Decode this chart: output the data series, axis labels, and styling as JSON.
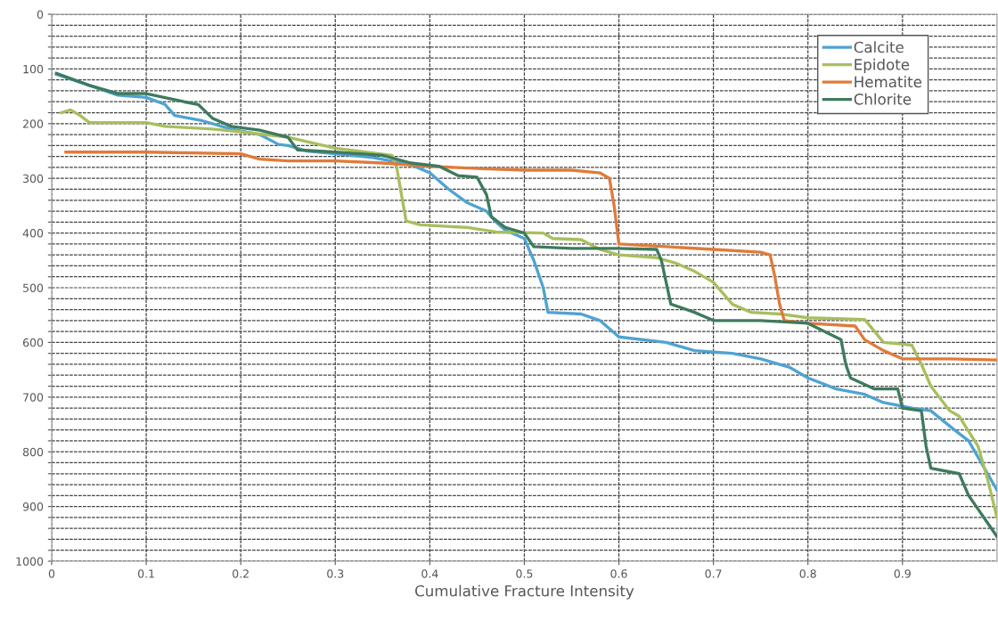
{
  "chart_data": {
    "type": "line",
    "xlabel": "Cumulative Fracture Intensity",
    "xlim": [
      0,
      1
    ],
    "xticks": [
      0,
      0.1,
      0.2,
      0.3,
      0.4,
      0.5,
      0.6,
      0.7,
      0.8,
      0.9
    ],
    "ylim": [
      1000,
      0
    ],
    "yticks": [
      0,
      {
        "value": 20,
        "label": null
      },
      {
        "value": 40,
        "label": null
      },
      {
        "value": 60,
        "label": null
      },
      {
        "value": 80,
        "label": null
      },
      100,
      {
        "value": 120,
        "label": null
      },
      {
        "value": 140,
        "label": null
      },
      {
        "value": 160,
        "label": null
      },
      {
        "value": 180,
        "label": null
      },
      200,
      {
        "value": 220,
        "label": null
      },
      {
        "value": 240,
        "label": null
      },
      {
        "value": 260,
        "label": null
      },
      {
        "value": 280,
        "label": null
      },
      300,
      {
        "value": 320,
        "label": null
      },
      {
        "value": 340,
        "label": null
      },
      {
        "value": 360,
        "label": null
      },
      {
        "value": 380,
        "label": null
      },
      400,
      {
        "value": 420,
        "label": null
      },
      {
        "value": 440,
        "label": null
      },
      {
        "value": 460,
        "label": null
      },
      {
        "value": 480,
        "label": null
      },
      500,
      {
        "value": 520,
        "label": null
      },
      {
        "value": 540,
        "label": null
      },
      {
        "value": 560,
        "label": null
      },
      {
        "value": 580,
        "label": null
      },
      600,
      {
        "value": 620,
        "label": null
      },
      {
        "value": 640,
        "label": null
      },
      {
        "value": 660,
        "label": null
      },
      {
        "value": 680,
        "label": null
      },
      700,
      {
        "value": 720,
        "label": null
      },
      {
        "value": 740,
        "label": null
      },
      {
        "value": 760,
        "label": null
      },
      {
        "value": 780,
        "label": null
      },
      800,
      {
        "value": 820,
        "label": null
      },
      {
        "value": 840,
        "label": null
      },
      {
        "value": 860,
        "label": null
      },
      {
        "value": 880,
        "label": null
      },
      900,
      {
        "value": 920,
        "label": null
      },
      {
        "value": 940,
        "label": null
      },
      {
        "value": 960,
        "label": null
      },
      {
        "value": 980,
        "label": null
      },
      1000
    ],
    "grid": true,
    "legend": "top right",
    "marker": "none",
    "line_style": "solid",
    "series": [
      {
        "name": "Calcite",
        "color": "#4fa3d1",
        "x": [
          0.005,
          0.04,
          0.07,
          0.1,
          0.12,
          0.13,
          0.16,
          0.19,
          0.22,
          0.24,
          0.25,
          0.27,
          0.3,
          0.34,
          0.38,
          0.4,
          0.42,
          0.44,
          0.46,
          0.47,
          0.48,
          0.5,
          0.51,
          0.52,
          0.525,
          0.56,
          0.58,
          0.6,
          0.65,
          0.68,
          0.72,
          0.75,
          0.78,
          0.8,
          0.83,
          0.86,
          0.88,
          0.91,
          0.93,
          0.955,
          0.97,
          0.99,
          1.0
        ],
        "values": [
          110,
          130,
          148,
          152,
          165,
          185,
          195,
          210,
          220,
          238,
          240,
          250,
          255,
          262,
          275,
          290,
          320,
          345,
          360,
          380,
          395,
          410,
          450,
          500,
          545,
          548,
          560,
          590,
          600,
          615,
          620,
          630,
          645,
          665,
          685,
          695,
          710,
          720,
          725,
          760,
          780,
          840,
          870
        ]
      },
      {
        "name": "Epidote",
        "color": "#a8bf5e",
        "x": [
          0.01,
          0.02,
          0.03,
          0.04,
          0.07,
          0.1,
          0.12,
          0.17,
          0.2,
          0.25,
          0.3,
          0.36,
          0.365,
          0.37,
          0.375,
          0.39,
          0.44,
          0.47,
          0.52,
          0.53,
          0.56,
          0.58,
          0.6,
          0.64,
          0.66,
          0.68,
          0.7,
          0.72,
          0.74,
          0.77,
          0.8,
          0.86,
          0.88,
          0.91,
          0.92,
          0.93,
          0.95,
          0.96,
          0.98,
          0.99,
          1.0
        ],
        "values": [
          180,
          175,
          185,
          198,
          198,
          198,
          205,
          210,
          215,
          225,
          245,
          258,
          280,
          330,
          378,
          385,
          390,
          398,
          400,
          410,
          412,
          430,
          440,
          445,
          455,
          470,
          490,
          530,
          545,
          548,
          555,
          558,
          600,
          605,
          640,
          680,
          725,
          735,
          790,
          850,
          920
        ]
      },
      {
        "name": "Hematite",
        "color": "#e07b3a",
        "x": [
          0.015,
          0.1,
          0.2,
          0.22,
          0.25,
          0.3,
          0.35,
          0.4,
          0.45,
          0.5,
          0.55,
          0.58,
          0.59,
          0.595,
          0.6,
          0.65,
          0.7,
          0.75,
          0.76,
          0.765,
          0.77,
          0.775,
          0.8,
          0.85,
          0.86,
          0.88,
          0.9,
          0.95,
          1.0
        ],
        "values": [
          252,
          252,
          255,
          265,
          268,
          268,
          272,
          278,
          282,
          285,
          285,
          290,
          300,
          350,
          420,
          425,
          430,
          435,
          440,
          480,
          530,
          560,
          565,
          570,
          595,
          615,
          630,
          630,
          632
        ]
      },
      {
        "name": "Chlorite",
        "color": "#3e7a5e",
        "x": [
          0.005,
          0.04,
          0.07,
          0.1,
          0.14,
          0.155,
          0.17,
          0.19,
          0.22,
          0.25,
          0.26,
          0.3,
          0.35,
          0.38,
          0.41,
          0.43,
          0.45,
          0.46,
          0.465,
          0.48,
          0.5,
          0.51,
          0.55,
          0.6,
          0.64,
          0.645,
          0.65,
          0.655,
          0.68,
          0.7,
          0.75,
          0.8,
          0.835,
          0.84,
          0.845,
          0.87,
          0.895,
          0.9,
          0.92,
          0.925,
          0.93,
          0.96,
          0.97,
          0.98,
          0.99,
          1.0
        ],
        "values": [
          108,
          130,
          145,
          145,
          160,
          165,
          190,
          205,
          212,
          225,
          248,
          252,
          258,
          272,
          278,
          295,
          298,
          330,
          370,
          390,
          400,
          425,
          428,
          428,
          430,
          450,
          490,
          530,
          545,
          560,
          560,
          565,
          595,
          640,
          665,
          685,
          685,
          720,
          725,
          790,
          830,
          840,
          880,
          905,
          930,
          955
        ]
      }
    ]
  }
}
